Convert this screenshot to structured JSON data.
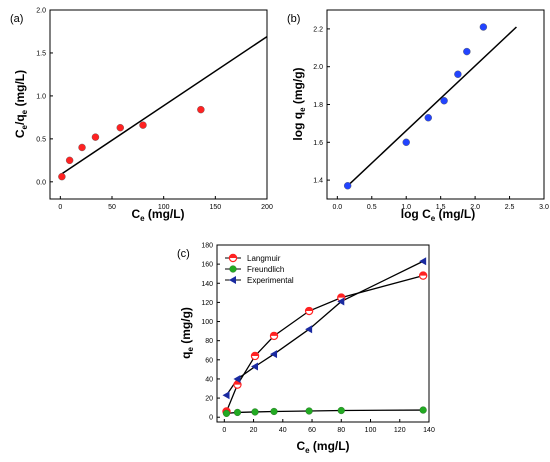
{
  "chart_data": [
    {
      "panel": "(a)",
      "type": "scatter",
      "xlabel": "Ce (mg/L)",
      "ylabel": "Ce/qe (mg/L)",
      "xlim": [
        -10,
        200
      ],
      "ylim": [
        -0.2,
        2.0
      ],
      "xticks": [
        0,
        50,
        100,
        150,
        200
      ],
      "yticks": [
        0.0,
        0.5,
        1.0,
        1.5,
        2.0
      ],
      "xtick_labels": [
        "0",
        "50",
        "100",
        "150",
        "200"
      ],
      "ytick_labels": [
        "0.0",
        "0.5",
        "1.0",
        "1.5",
        "2.0"
      ],
      "points": [
        [
          1.5,
          0.06
        ],
        [
          9,
          0.25
        ],
        [
          21,
          0.4
        ],
        [
          34,
          0.52
        ],
        [
          58,
          0.63
        ],
        [
          80,
          0.66
        ],
        [
          136,
          0.84
        ]
      ],
      "point_color": "#ff2222",
      "fit_line": [
        [
          1,
          0.09
        ],
        [
          200,
          1.69
        ]
      ],
      "grid": false
    },
    {
      "panel": "(b)",
      "type": "scatter",
      "xlabel": "log Ce (mg/L)",
      "ylabel": "log qe (mg/g)",
      "xlim": [
        -0.15,
        3.0
      ],
      "ylim": [
        1.3,
        2.3
      ],
      "xticks": [
        0.0,
        0.5,
        1.0,
        1.5,
        2.0,
        2.5,
        3.0
      ],
      "yticks": [
        1.4,
        1.6,
        1.8,
        2.0,
        2.2
      ],
      "xtick_labels": [
        "0.0",
        "0.5",
        "1.0",
        "1.5",
        "2.0",
        "2.5",
        "3.0"
      ],
      "ytick_labels": [
        "1.4",
        "1.6",
        "1.8",
        "2.0",
        "2.2"
      ],
      "points": [
        [
          0.15,
          1.37
        ],
        [
          1.0,
          1.6
        ],
        [
          1.32,
          1.73
        ],
        [
          1.55,
          1.82
        ],
        [
          1.75,
          1.96
        ],
        [
          1.88,
          2.08
        ],
        [
          2.12,
          2.21
        ]
      ],
      "point_color": "#2244ff",
      "fit_line": [
        [
          0.15,
          1.37
        ],
        [
          2.6,
          2.21
        ]
      ],
      "grid": false
    },
    {
      "panel": "(c)",
      "type": "line",
      "xlabel": "Ce (mg/L)",
      "ylabel": "qe (mg/g)",
      "xlim": [
        -5,
        140
      ],
      "ylim": [
        -5,
        180
      ],
      "xticks": [
        0,
        20,
        40,
        60,
        80,
        100,
        120,
        140
      ],
      "yticks": [
        0,
        20,
        40,
        60,
        80,
        100,
        120,
        140,
        160,
        180
      ],
      "xtick_labels": [
        "0",
        "20",
        "40",
        "60",
        "80",
        "100",
        "120",
        "140"
      ],
      "ytick_labels": [
        "0",
        "20",
        "40",
        "60",
        "80",
        "100",
        "120",
        "140",
        "160",
        "180"
      ],
      "legend_position": "top-left",
      "grid": false,
      "series": [
        {
          "name": "Langmuir",
          "color": "#ff2222",
          "marker": "circle-open-half",
          "x": [
            1.5,
            9,
            21,
            34,
            58,
            80,
            136
          ],
          "y": [
            6,
            34,
            64,
            85,
            111,
            125,
            148
          ]
        },
        {
          "name": "Freundlich",
          "color": "#22aa22",
          "marker": "circle",
          "x": [
            1.5,
            9,
            21,
            34,
            58,
            80,
            136
          ],
          "y": [
            4,
            5,
            5.5,
            6,
            6.5,
            7,
            7.5
          ]
        },
        {
          "name": "Experimental",
          "color": "#1a2aa0",
          "marker": "triangle-left",
          "x": [
            1.5,
            9,
            21,
            34,
            58,
            80,
            136
          ],
          "y": [
            23,
            40,
            53,
            66,
            92,
            121,
            163
          ]
        }
      ]
    }
  ]
}
